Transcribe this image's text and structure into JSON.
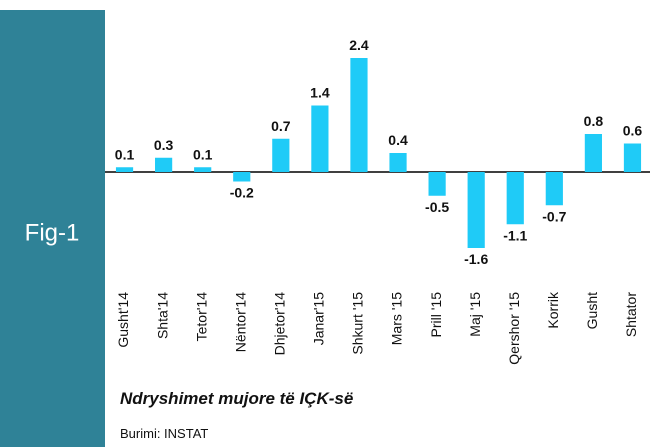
{
  "panel": {
    "label": "Fig-1"
  },
  "chart_data": {
    "type": "bar",
    "title": "Ndryshimet mujore të IÇK-së",
    "source": "Burimi: INSTAT",
    "categories": [
      "Gusht'14",
      "Shta'14",
      "Tetor'14",
      "Nëntor'14",
      "Dhjetor'14",
      "Janar'15",
      "Shkurt '15",
      "Mars '15",
      "Prill '15",
      "Maj '15",
      "Qershor '15",
      "Korrik",
      "Gusht",
      "Shtator"
    ],
    "values": [
      0.1,
      0.3,
      0.1,
      -0.2,
      0.7,
      1.4,
      2.4,
      0.4,
      -0.5,
      -1.6,
      -1.1,
      -0.7,
      0.8,
      0.6
    ],
    "color": "#1fcbf7"
  }
}
